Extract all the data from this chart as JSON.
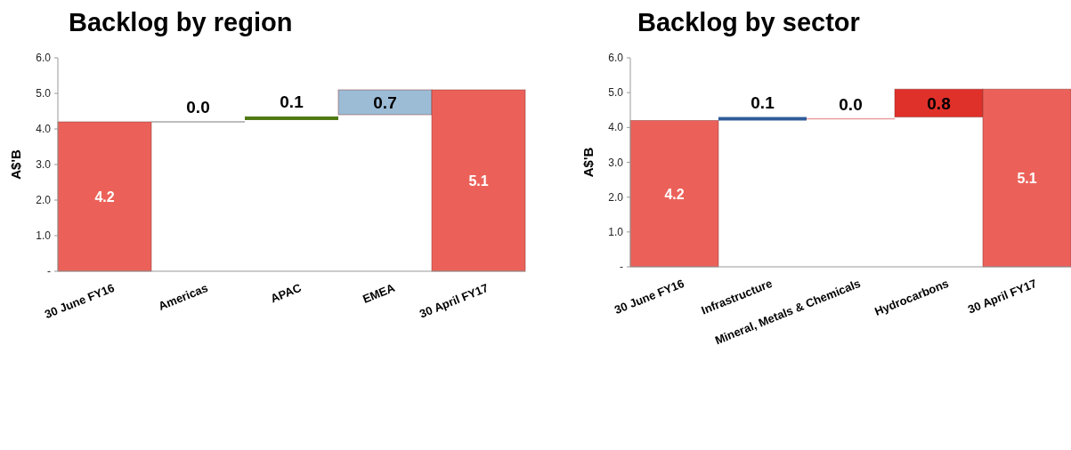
{
  "chart_data": [
    {
      "type": "bar",
      "title": "Backlog by region",
      "ylabel": "A$'B",
      "categories": [
        "30 June FY16",
        "Americas",
        "APAC",
        "EMEA",
        "30 April FY17"
      ],
      "values": [
        4.2,
        0.0,
        0.1,
        0.7,
        5.1
      ],
      "base": [
        0,
        4.2,
        4.25,
        4.4,
        0
      ],
      "colors": [
        "#eb6159",
        "#a6a6a6",
        "#4f7a14",
        "#9cbcd6",
        "#eb6159"
      ],
      "value_labels": [
        "4.2",
        "0.0",
        "0.1",
        "0.7",
        "5.1"
      ],
      "ylim": [
        0,
        6
      ],
      "yticks": [
        {
          "value": 0,
          "label": "-"
        },
        {
          "value": 1,
          "label": "1.0"
        },
        {
          "value": 2,
          "label": "2.0"
        },
        {
          "value": 3,
          "label": "3.0"
        },
        {
          "value": 4,
          "label": "4.0"
        },
        {
          "value": 5,
          "label": "5.0"
        },
        {
          "value": 6,
          "label": "6.0"
        }
      ],
      "grid": false
    },
    {
      "type": "bar",
      "title": "Backlog by sector",
      "ylabel": "A$'B",
      "categories": [
        "30 June FY16",
        "Infrastructure",
        "Mineral, Metals & Chemicals",
        "Hydrocarbons",
        "30 April FY17"
      ],
      "values": [
        4.2,
        0.1,
        0.0,
        0.8,
        5.1
      ],
      "base": [
        0,
        4.2,
        4.25,
        4.3,
        0
      ],
      "colors": [
        "#eb6159",
        "#2e5c9a",
        "#e8a0a0",
        "#e0302a",
        "#eb6159"
      ],
      "value_labels": [
        "4.2",
        "0.1",
        "0.0",
        "0.8",
        "5.1"
      ],
      "ylim": [
        0,
        6
      ],
      "yticks": [
        {
          "value": 0,
          "label": "-"
        },
        {
          "value": 1,
          "label": "1.0"
        },
        {
          "value": 2,
          "label": "2.0"
        },
        {
          "value": 3,
          "label": "3.0"
        },
        {
          "value": 4,
          "label": "4.0"
        },
        {
          "value": 5,
          "label": "5.0"
        },
        {
          "value": 6,
          "label": "6.0"
        }
      ],
      "grid": false
    }
  ]
}
